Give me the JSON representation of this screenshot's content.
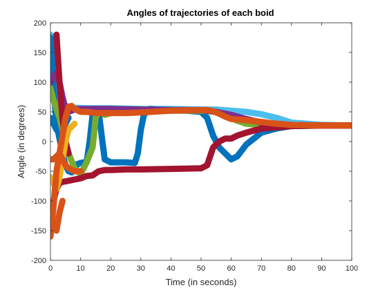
{
  "chart_data": {
    "type": "line",
    "title": "Angles of trajectories of each boid",
    "xlabel": "Time (in seconds)",
    "ylabel": "Angle (in degrees)",
    "xlim": [
      0,
      100
    ],
    "ylim": [
      -200,
      200
    ],
    "xticks": [
      "0",
      "10",
      "20",
      "30",
      "40",
      "50",
      "60",
      "70",
      "80",
      "90",
      "100"
    ],
    "yticks": [
      "-200",
      "-150",
      "-100",
      "-50",
      "0",
      "50",
      "100",
      "150",
      "200"
    ],
    "grid": false,
    "legend": "none",
    "series": [
      {
        "color": "#4DBEEE",
        "x": [
          0,
          1,
          2,
          3,
          5,
          8,
          12,
          20,
          30,
          40,
          50,
          55,
          60,
          65,
          70,
          75,
          80,
          90,
          100
        ],
        "y": [
          180,
          120,
          70,
          62,
          60,
          57,
          56,
          56,
          55,
          55,
          54,
          54,
          52,
          50,
          46,
          40,
          32,
          28,
          27
        ]
      },
      {
        "color": "#0072BD",
        "x": [
          0,
          1,
          2,
          3,
          4,
          5,
          6,
          7,
          8,
          9,
          10,
          11,
          12,
          13,
          14,
          15,
          16,
          17,
          18,
          20,
          25,
          28,
          29,
          30,
          31,
          33,
          35,
          40,
          45,
          50,
          52,
          54,
          56,
          58,
          60,
          62,
          65,
          70,
          75,
          80,
          90,
          100
        ],
        "y": [
          175,
          90,
          30,
          5,
          -20,
          -40,
          -50,
          -52,
          -45,
          -38,
          -36,
          -35,
          -35,
          0,
          45,
          55,
          50,
          10,
          -30,
          -35,
          -35,
          -36,
          -20,
          20,
          45,
          55,
          54,
          53,
          52,
          50,
          40,
          10,
          -10,
          -20,
          -30,
          -25,
          -5,
          15,
          22,
          26,
          27,
          27
        ]
      },
      {
        "color": "#0072BD",
        "x": [
          0,
          1,
          2,
          3,
          4,
          5,
          6
        ],
        "y": [
          40,
          30,
          20,
          15,
          20,
          30,
          40
        ]
      },
      {
        "color": "#77AC30",
        "x": [
          0,
          1,
          2,
          3,
          4,
          5,
          6,
          8,
          10,
          12,
          14,
          15,
          16,
          17,
          18,
          20,
          30,
          40,
          50,
          55,
          58,
          60,
          62,
          65,
          70,
          80,
          90,
          100
        ],
        "y": [
          90,
          70,
          55,
          40,
          20,
          0,
          -20,
          -45,
          -55,
          -35,
          -10,
          40,
          50,
          50,
          45,
          48,
          50,
          52,
          52,
          50,
          45,
          40,
          35,
          30,
          28,
          27,
          27,
          27
        ]
      },
      {
        "color": "#7E2F8E",
        "x": [
          0,
          1,
          2,
          3,
          4,
          5,
          6,
          7,
          8,
          10,
          12,
          15,
          20,
          30,
          40,
          50,
          55,
          60,
          65,
          70,
          80,
          90,
          100
        ],
        "y": [
          100,
          110,
          115,
          100,
          75,
          55,
          50,
          52,
          54,
          55,
          55,
          55,
          55,
          54,
          53,
          53,
          50,
          45,
          38,
          32,
          28,
          27,
          27
        ]
      },
      {
        "color": "#A2142F",
        "x": [
          0,
          1,
          2,
          3,
          4,
          5,
          6,
          8,
          10,
          12,
          14,
          16,
          18,
          20,
          25,
          30,
          40,
          50,
          52,
          54,
          56,
          58,
          60,
          62,
          65,
          70,
          80,
          90,
          100
        ],
        "y": [
          -120,
          -100,
          -80,
          -70,
          -68,
          -67,
          -66,
          -64,
          -62,
          -58,
          -57,
          -50,
          -48,
          -48,
          -47,
          -47,
          -46,
          -45,
          -40,
          -10,
          0,
          5,
          5,
          10,
          15,
          22,
          26,
          27,
          27
        ]
      },
      {
        "color": "#A2142F",
        "x": [
          2,
          3,
          4,
          5,
          6
        ],
        "y": [
          180,
          100,
          40,
          0,
          -20
        ]
      },
      {
        "color": "#EDB120",
        "x": [
          0,
          1,
          2,
          3,
          4,
          5,
          6,
          8
        ],
        "y": [
          -60,
          -70,
          -80,
          -60,
          -30,
          0,
          20,
          30
        ]
      },
      {
        "color": "#D95319",
        "x": [
          0,
          1,
          2,
          3,
          4,
          5,
          6,
          7,
          8,
          10,
          12,
          15,
          20,
          25,
          30,
          40,
          50,
          52,
          54,
          56,
          58,
          60,
          65,
          70,
          75,
          80,
          90,
          100
        ],
        "y": [
          -160,
          -110,
          -50,
          -20,
          10,
          40,
          58,
          60,
          55,
          50,
          50,
          48,
          48,
          48,
          49,
          52,
          53,
          53,
          51,
          47,
          42,
          38,
          36,
          33,
          30,
          28,
          27,
          27
        ]
      },
      {
        "color": "#D95319",
        "x": [
          0,
          1,
          2,
          3,
          4,
          5,
          6,
          8,
          10
        ],
        "y": [
          -30,
          -30,
          -25,
          -20,
          -30,
          -40,
          -45,
          -50,
          -50
        ]
      },
      {
        "color": "#D95319",
        "x": [
          2,
          3,
          4
        ],
        "y": [
          -150,
          -120,
          -100
        ]
      }
    ]
  }
}
